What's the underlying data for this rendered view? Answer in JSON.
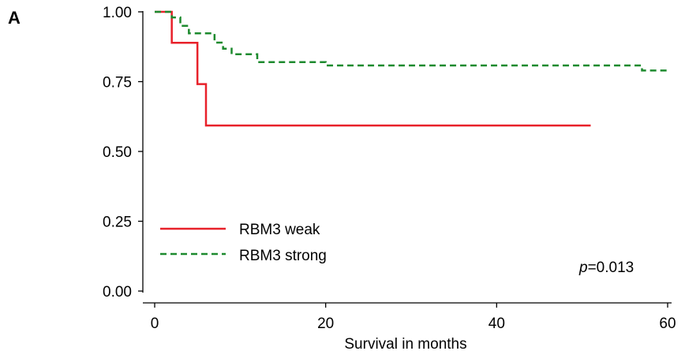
{
  "chart_data": {
    "type": "line",
    "panel_label": "A",
    "title": "",
    "xlabel": "Survival in months",
    "ylabel": "",
    "xlim": [
      0,
      60
    ],
    "ylim": [
      0,
      1
    ],
    "xticks": [
      "0",
      "20",
      "40",
      "60"
    ],
    "yticks": [
      "0.00",
      "0.25",
      "0.50",
      "0.75",
      "1.00"
    ],
    "grid": false,
    "legend_position": "bottom-left",
    "annotation": {
      "italic": "p",
      "rest": "=0.013"
    },
    "series": [
      {
        "name": "RBM3 weak",
        "color": "#e8212a",
        "style": "solid",
        "step": true,
        "x": [
          0,
          2,
          5,
          6,
          51
        ],
        "y": [
          1.0,
          0.889,
          0.741,
          0.593,
          0.593
        ]
      },
      {
        "name": "RBM3 strong",
        "color": "#1d8a2e",
        "style": "dashed",
        "step": true,
        "x": [
          0,
          2,
          3,
          4,
          7,
          8,
          9,
          12,
          20,
          57,
          60
        ],
        "y": [
          1.0,
          0.98,
          0.95,
          0.923,
          0.89,
          0.868,
          0.848,
          0.82,
          0.808,
          0.79,
          0.79
        ]
      }
    ]
  }
}
